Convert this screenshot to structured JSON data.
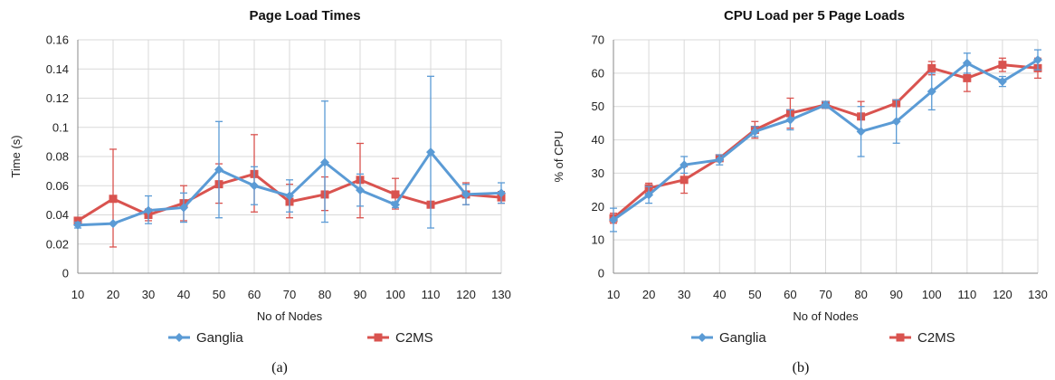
{
  "chart_data": [
    {
      "type": "line",
      "title": "Page Load Times",
      "xlabel": "No of Nodes",
      "ylabel": "Time (s)",
      "caption": "(a)",
      "x": [
        10,
        20,
        30,
        40,
        50,
        60,
        70,
        80,
        90,
        100,
        110,
        120,
        130
      ],
      "ylim": [
        0,
        0.16
      ],
      "yticks": [
        "0",
        "0.02",
        "0.04",
        "0.06",
        "0.08",
        "0.1",
        "0.12",
        "0.14",
        "0.16"
      ],
      "grid": true,
      "legend_position": "bottom",
      "series": [
        {
          "name": "Ganglia",
          "color": "#5b9bd5",
          "marker": "diamond",
          "values": [
            0.033,
            0.034,
            0.043,
            0.045,
            0.071,
            0.06,
            0.053,
            0.076,
            0.057,
            0.047,
            0.083,
            0.054,
            0.055
          ],
          "err_low": [
            0.031,
            0.034,
            0.034,
            0.035,
            0.038,
            0.047,
            0.042,
            0.035,
            0.046,
            0.045,
            0.031,
            0.047,
            0.048
          ],
          "err_high": [
            0.035,
            0.034,
            0.053,
            0.055,
            0.104,
            0.073,
            0.064,
            0.118,
            0.068,
            0.049,
            0.135,
            0.061,
            0.062
          ]
        },
        {
          "name": "C2MS",
          "color": "#d9534f",
          "marker": "square",
          "values": [
            0.036,
            0.051,
            0.04,
            0.048,
            0.061,
            0.068,
            0.049,
            0.054,
            0.064,
            0.054,
            0.047,
            0.054,
            0.052
          ],
          "err_low": [
            0.034,
            0.018,
            0.036,
            0.036,
            0.048,
            0.042,
            0.038,
            0.043,
            0.038,
            0.044,
            0.045,
            0.047,
            0.048
          ],
          "err_high": [
            0.038,
            0.085,
            0.044,
            0.06,
            0.075,
            0.095,
            0.061,
            0.066,
            0.089,
            0.065,
            0.049,
            0.062,
            0.056
          ]
        }
      ]
    },
    {
      "type": "line",
      "title": "CPU Load per 5 Page Loads",
      "xlabel": "No of Nodes",
      "ylabel": "% of CPU",
      "caption": "(b)",
      "x": [
        10,
        20,
        30,
        40,
        50,
        60,
        70,
        80,
        90,
        100,
        110,
        120,
        130
      ],
      "ylim": [
        0,
        70
      ],
      "yticks": [
        "0",
        "10",
        "20",
        "30",
        "40",
        "50",
        "60",
        "70"
      ],
      "grid": true,
      "legend_position": "bottom",
      "series": [
        {
          "name": "Ganglia",
          "color": "#5b9bd5",
          "marker": "diamond",
          "values": [
            16,
            23.5,
            32.5,
            34,
            42.5,
            46,
            50.5,
            42.5,
            45.5,
            54.5,
            63,
            57.5,
            64
          ],
          "err_low": [
            12.5,
            21,
            30,
            32.5,
            41,
            43,
            49.5,
            35,
            39,
            49,
            60,
            56,
            61
          ],
          "err_high": [
            19.5,
            26,
            35,
            35.5,
            44,
            49,
            51.5,
            50,
            52,
            60,
            66,
            59,
            67
          ]
        },
        {
          "name": "C2MS",
          "color": "#d9534f",
          "marker": "square",
          "values": [
            16.5,
            25.5,
            28,
            34.5,
            43,
            48,
            50.5,
            47,
            51,
            61.5,
            58.5,
            62.5,
            61.5
          ],
          "err_low": [
            15,
            24,
            24,
            33.5,
            40.5,
            43.5,
            49.5,
            42.5,
            50,
            59.5,
            54.5,
            60.5,
            58.5
          ],
          "err_high": [
            18,
            27,
            32,
            35.5,
            45.5,
            52.5,
            51.5,
            51.5,
            52,
            63.5,
            62.5,
            64.5,
            64.5
          ]
        }
      ]
    }
  ]
}
